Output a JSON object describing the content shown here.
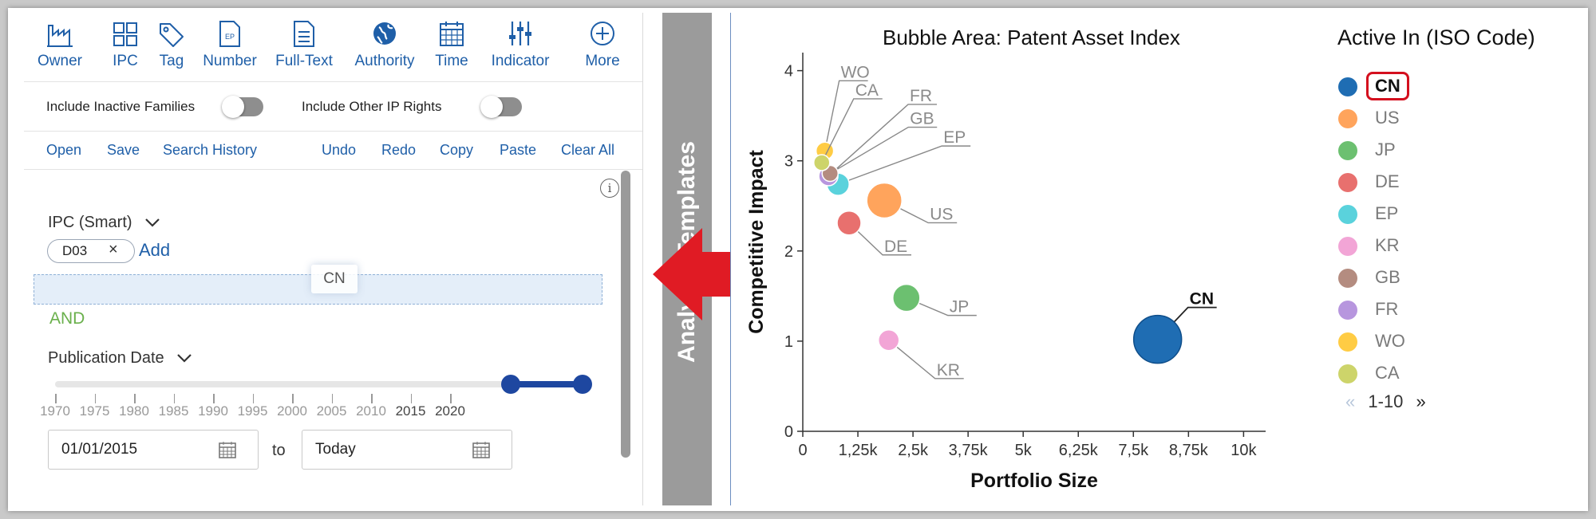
{
  "toolbar": {
    "items": [
      {
        "label": "Owner",
        "icon": "factory-icon"
      },
      {
        "label": "IPC",
        "icon": "grid-icon"
      },
      {
        "label": "Tag",
        "icon": "tag-icon"
      },
      {
        "label": "Number",
        "icon": "ep-document-icon"
      },
      {
        "label": "Full-Text",
        "icon": "document-icon"
      },
      {
        "label": "Authority",
        "icon": "globe-icon"
      },
      {
        "label": "Time",
        "icon": "calendar-icon"
      },
      {
        "label": "Indicator",
        "icon": "sliders-icon"
      },
      {
        "label": "More",
        "icon": "plus-circle-icon"
      }
    ]
  },
  "toggles": {
    "inactive_label": "Include Inactive Families",
    "other_ip_label": "Include Other IP Rights"
  },
  "actions": {
    "open": "Open",
    "save": "Save",
    "history": "Search History",
    "undo": "Undo",
    "redo": "Redo",
    "copy": "Copy",
    "paste": "Paste",
    "clear": "Clear All"
  },
  "query": {
    "ipc_title": "IPC (Smart)",
    "chip": "D03",
    "add": "Add",
    "drag_value": "CN",
    "operator": "AND",
    "pubdate_title": "Publication Date",
    "slider_ticks": [
      "1970",
      "1975",
      "1980",
      "1985",
      "1990",
      "1995",
      "2000",
      "2005",
      "2010",
      "2015",
      "2020"
    ],
    "slider_range": [
      2015,
      2022
    ],
    "date_from": "01/01/2015",
    "date_to_label": "to",
    "date_to": "Today"
  },
  "midbar": {
    "title": "Analysis Templates"
  },
  "chart": {
    "title": "Bubble Area:  Patent Asset Index",
    "legend_title": "Active In (ISO Code)",
    "pager": "1-10"
  },
  "chart_data": {
    "type": "scatter",
    "title": "Bubble Area:  Patent Asset Index",
    "xlabel": "Portfolio Size",
    "ylabel": "Competitive Impact",
    "xlim": [
      0,
      10500
    ],
    "ylim": [
      0,
      4.2
    ],
    "xticks": [
      0,
      1250,
      2500,
      3750,
      5000,
      6250,
      7500,
      8750,
      10000
    ],
    "xtick_labels": [
      "0",
      "1,25k",
      "2,5k",
      "3,75k",
      "5k",
      "6,25k",
      "7,5k",
      "8,75k",
      "10k"
    ],
    "yticks": [
      0,
      1,
      2,
      3,
      4
    ],
    "legend": "right",
    "points": [
      {
        "label": "CN",
        "x": 8050,
        "y": 1.02,
        "r": 30,
        "color": "#1f6db3"
      },
      {
        "label": "US",
        "x": 1850,
        "y": 2.56,
        "r": 22,
        "color": "#ffa45c"
      },
      {
        "label": "JP",
        "x": 2350,
        "y": 1.48,
        "r": 17,
        "color": "#6cc070"
      },
      {
        "label": "DE",
        "x": 1050,
        "y": 2.31,
        "r": 15,
        "color": "#e8706e"
      },
      {
        "label": "EP",
        "x": 800,
        "y": 2.74,
        "r": 14,
        "color": "#5ad2dc"
      },
      {
        "label": "KR",
        "x": 1950,
        "y": 1.01,
        "r": 13,
        "color": "#f2a5d6"
      },
      {
        "label": "GB",
        "x": 620,
        "y": 2.86,
        "r": 10,
        "color": "#b48c80"
      },
      {
        "label": "FR",
        "x": 580,
        "y": 2.83,
        "r": 12,
        "color": "#b796de"
      },
      {
        "label": "WO",
        "x": 500,
        "y": 3.11,
        "r": 11,
        "color": "#ffcc44"
      },
      {
        "label": "CA",
        "x": 430,
        "y": 2.98,
        "r": 10,
        "color": "#cdd46a"
      }
    ]
  }
}
